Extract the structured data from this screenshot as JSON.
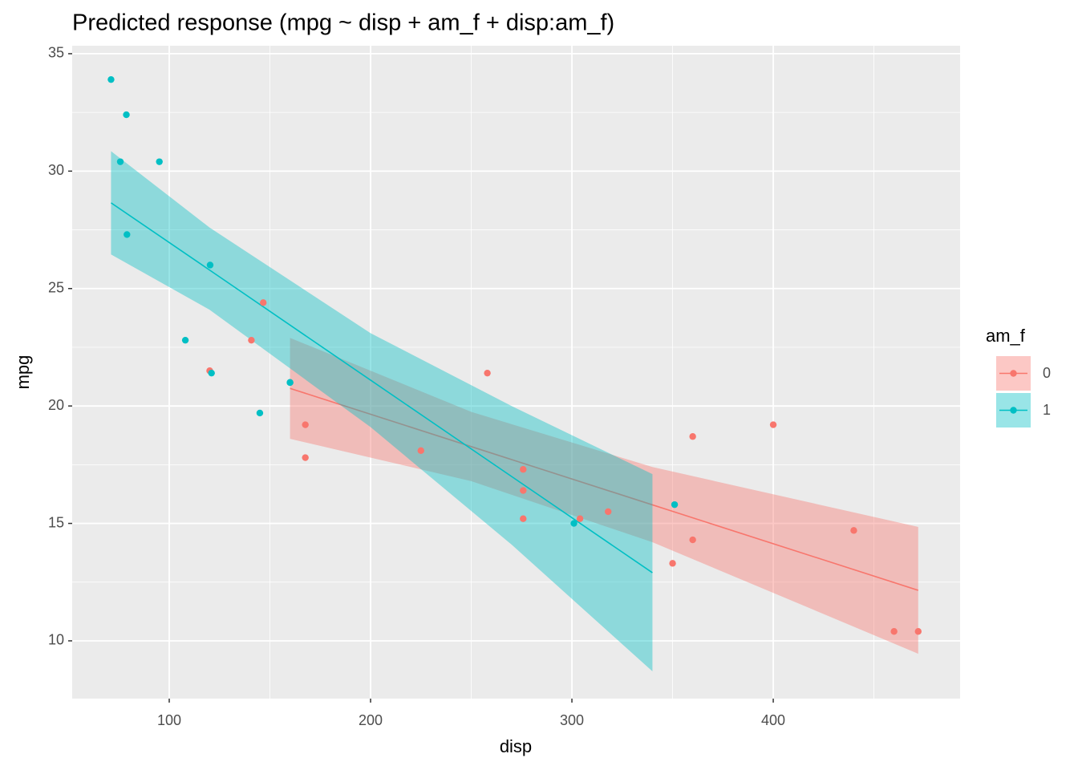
{
  "chart_data": {
    "type": "scatter",
    "title": "Predicted response (mpg ~ disp + am_f + disp:am_f)",
    "x_label": "disp",
    "y_label": "mpg",
    "legend_title": "am_f",
    "xlim": [
      51.8,
      492.8
    ],
    "ylim": [
      7.54,
      35.34
    ],
    "xticks": [
      100,
      200,
      300,
      400
    ],
    "yticks": [
      10,
      15,
      20,
      25,
      30,
      35
    ],
    "xminor": [
      150,
      250,
      350,
      450
    ],
    "yminor": [
      12.5,
      17.5,
      22.5,
      27.5,
      32.5
    ],
    "grid": true,
    "legend": "right",
    "series": [
      {
        "name": "0",
        "color": "#F8766D",
        "x": [
          258,
          360,
          225,
          360,
          146.7,
          140.8,
          167.6,
          167.6,
          275.8,
          275.8,
          275.8,
          472,
          460,
          440,
          318,
          304,
          350,
          400,
          120.1
        ],
        "values": [
          21.4,
          18.7,
          18.1,
          14.3,
          24.4,
          22.8,
          19.2,
          17.8,
          16.4,
          17.3,
          15.2,
          10.4,
          10.4,
          14.7,
          15.5,
          15.2,
          13.3,
          19.2,
          21.5
        ],
        "fit": {
          "x": [
            160,
            250,
            340,
            472
          ],
          "values": [
            20.75,
            18.27,
            15.79,
            12.15
          ],
          "lower": [
            18.6,
            16.8,
            14.2,
            9.45
          ],
          "upper": [
            22.9,
            19.75,
            17.4,
            14.85
          ]
        }
      },
      {
        "name": "1",
        "color": "#00BFC4",
        "x": [
          160,
          160,
          108,
          78.7,
          75.7,
          71.1,
          79,
          120.3,
          95.1,
          351,
          145,
          301,
          121
        ],
        "values": [
          21,
          21,
          22.8,
          32.4,
          30.4,
          33.9,
          27.3,
          26,
          30.4,
          15.8,
          19.7,
          15,
          21.4
        ],
        "fit": {
          "x": [
            71.1,
            120,
            200,
            270,
            340
          ],
          "values": [
            28.65,
            25.79,
            21.1,
            17.0,
            12.9
          ],
          "lower": [
            26.45,
            24.1,
            19.1,
            14.1,
            8.7
          ],
          "upper": [
            30.85,
            27.6,
            23.1,
            20.0,
            17.1
          ]
        }
      }
    ]
  }
}
